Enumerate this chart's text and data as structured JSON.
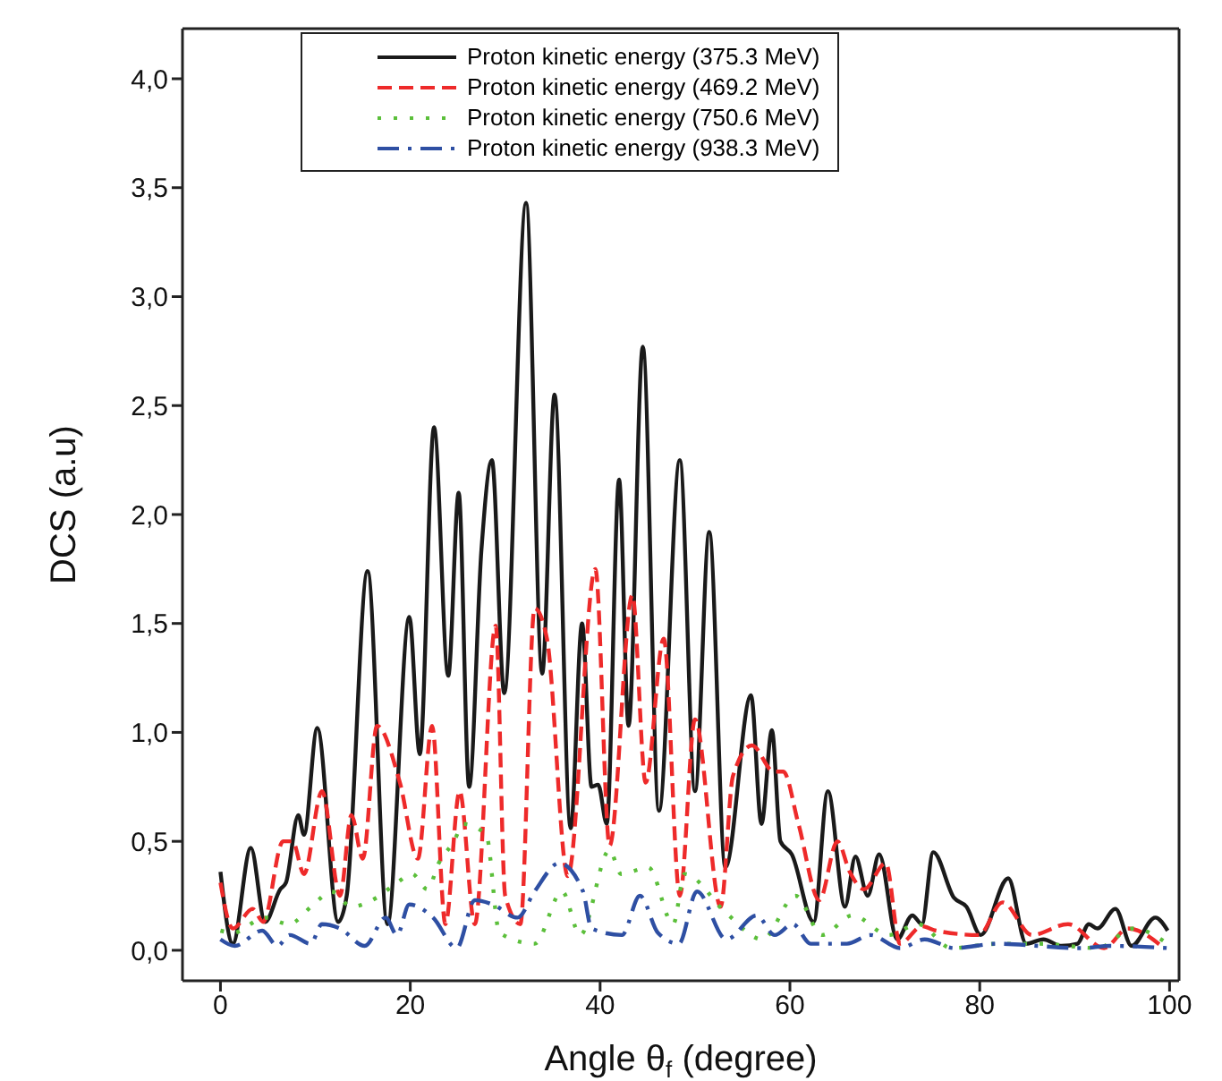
{
  "chart_data": {
    "type": "line",
    "xlabel": "Angle θ$_{f}$ (degree)",
    "ylabel": "DCS (a.u)",
    "xlim": [
      -4,
      101
    ],
    "xticks": [
      0,
      20,
      40,
      60,
      80,
      100
    ],
    "ylim": [
      -0.14,
      4.23
    ],
    "yticks": [
      {
        "value": 0,
        "label": "0,0"
      },
      {
        "value": 0.5,
        "label": "0,5"
      },
      {
        "value": 1,
        "label": "1,0"
      },
      {
        "value": 1.5,
        "label": "1,5"
      },
      {
        "value": 2,
        "label": "2,0"
      },
      {
        "value": 2.5,
        "label": "2,5"
      },
      {
        "value": 3,
        "label": "3,0"
      },
      {
        "value": 3.5,
        "label": "3,5"
      },
      {
        "value": 4,
        "label": "4,0"
      }
    ],
    "legend": "top",
    "marker": "none",
    "series": [
      {
        "name": "Proton kinetic energy (375.3 MeV)",
        "color": "#1a1a1a",
        "line_style": "solid",
        "x": [
          0,
          1.3,
          3.2,
          4.7,
          6.3,
          6.9,
          8.2,
          8.8,
          10.2,
          12.4,
          13.3,
          15.5,
          17.6,
          19.9,
          21,
          22.5,
          24,
          25.1,
          26.2,
          27.5,
          28.6,
          29.9,
          32.2,
          33.9,
          35.2,
          36.9,
          38.1,
          39.1,
          39.8,
          40.7,
          42,
          43,
          44.5,
          46.2,
          48.4,
          50,
          51.5,
          53.2,
          55.9,
          57,
          58.1,
          59,
          60.2,
          62.5,
          64,
          65.8,
          66.9,
          68.2,
          69.4,
          71.3,
          72.9,
          73.9,
          75.1,
          77.3,
          78.6,
          80.1,
          83,
          84.9,
          86.7,
          88.6,
          90.3,
          91.5,
          92.4,
          94.3,
          96,
          98.5,
          99.8
        ],
        "values": [
          0.36,
          0.03,
          0.47,
          0.13,
          0.28,
          0.31,
          0.62,
          0.53,
          1.02,
          0.13,
          0.25,
          1.74,
          0.12,
          1.53,
          0.9,
          2.4,
          1.26,
          2.1,
          0.75,
          1.84,
          2.25,
          1.18,
          3.43,
          1.27,
          2.55,
          0.56,
          1.5,
          0.75,
          0.76,
          0.58,
          2.16,
          1.03,
          2.77,
          0.64,
          2.25,
          0.73,
          1.92,
          0.38,
          1.17,
          0.58,
          1.01,
          0.5,
          0.44,
          0.13,
          0.73,
          0.2,
          0.43,
          0.25,
          0.44,
          0.05,
          0.16,
          0.12,
          0.45,
          0.24,
          0.2,
          0.07,
          0.33,
          0.03,
          0.05,
          0.02,
          0.03,
          0.12,
          0.1,
          0.19,
          0.02,
          0.15,
          0.09
        ]
      },
      {
        "name": "Proton kinetic energy (469.2 MeV)",
        "color": "#ee2a2a",
        "line_style": "dashed",
        "x": [
          0,
          1.3,
          3.4,
          4.5,
          6.6,
          7.6,
          8.8,
          10.7,
          12.6,
          13.8,
          15,
          16.5,
          18.9,
          20.8,
          22.3,
          23.7,
          25.2,
          26.8,
          29,
          30,
          31.6,
          33.1,
          34.4,
          36.6,
          39.5,
          41,
          43.4,
          44.8,
          46.7,
          48.4,
          50,
          52.7,
          54,
          56,
          58.3,
          59.3,
          60.9,
          63.1,
          65,
          66.3,
          67.8,
          70.1,
          71.6,
          73.9,
          75.4,
          79.9,
          82.4,
          85.5,
          89.3,
          93.1,
          95.6,
          99.4
        ],
        "values": [
          0.31,
          0.1,
          0.19,
          0.13,
          0.5,
          0.5,
          0.35,
          0.73,
          0.25,
          0.62,
          0.42,
          1.03,
          0.77,
          0.42,
          1.03,
          0.12,
          0.73,
          0.12,
          1.49,
          0.25,
          0.12,
          1.57,
          1.43,
          0.34,
          1.75,
          0.48,
          1.63,
          0.77,
          1.43,
          0.25,
          1.06,
          0.2,
          0.8,
          0.94,
          0.82,
          0.82,
          0.58,
          0.23,
          0.5,
          0.36,
          0.28,
          0.4,
          0.03,
          0.11,
          0.09,
          0.07,
          0.22,
          0.07,
          0.12,
          0.01,
          0.1,
          0.01
        ]
      },
      {
        "name": "Proton kinetic energy (750.6 MeV)",
        "color": "#5bbf3a",
        "line_style": "dotted",
        "x": [
          0,
          1.3,
          4.7,
          7.2,
          9.8,
          11.7,
          13.8,
          16.4,
          18.6,
          20.2,
          21.8,
          23,
          24.6,
          25.6,
          28,
          29.4,
          33.1,
          36,
          37.9,
          41,
          42.2,
          45.1,
          47.7,
          48.9,
          53.3,
          57.1,
          60.6,
          63.4,
          66.6,
          70.4,
          73.5,
          77,
          82,
          86.2,
          92.4,
          96.2,
          99.8
        ],
        "values": [
          0.09,
          0.08,
          0.15,
          0.12,
          0.21,
          0.27,
          0.2,
          0.24,
          0.31,
          0.35,
          0.28,
          0.4,
          0.5,
          0.58,
          0.53,
          0.08,
          0.03,
          0.27,
          0.07,
          0.46,
          0.35,
          0.38,
          0.12,
          0.35,
          0.17,
          0.05,
          0.25,
          0.07,
          0.16,
          0.07,
          0.12,
          0.01,
          0.03,
          0.03,
          0.01,
          0.1,
          0.03
        ]
      },
      {
        "name": "Proton kinetic energy (938.3 MeV)",
        "color": "#2e4fa3",
        "line_style": "dashdot",
        "x": [
          0,
          1.5,
          4.4,
          6,
          7.3,
          9.5,
          10.7,
          12.6,
          15.2,
          17.4,
          18.6,
          19.9,
          22.4,
          24.9,
          26.8,
          28.7,
          31.3,
          33.1,
          35.7,
          38.2,
          39.1,
          42.3,
          44.2,
          46.1,
          48.3,
          50.2,
          53.3,
          56.5,
          58.4,
          60.3,
          62.2,
          66,
          68.5,
          71.6,
          74.2,
          77.3,
          81.8,
          90.6,
          93.8,
          99.8
        ],
        "values": [
          0.05,
          0.02,
          0.09,
          0.02,
          0.07,
          0.03,
          0.12,
          0.1,
          0.02,
          0.15,
          0.07,
          0.21,
          0.15,
          0.01,
          0.23,
          0.21,
          0.15,
          0.27,
          0.4,
          0.27,
          0.1,
          0.07,
          0.25,
          0.08,
          0.03,
          0.27,
          0.05,
          0.16,
          0.07,
          0.12,
          0.03,
          0.03,
          0.07,
          0.01,
          0.05,
          0.01,
          0.03,
          0.01,
          0.02,
          0.01
        ]
      }
    ]
  }
}
